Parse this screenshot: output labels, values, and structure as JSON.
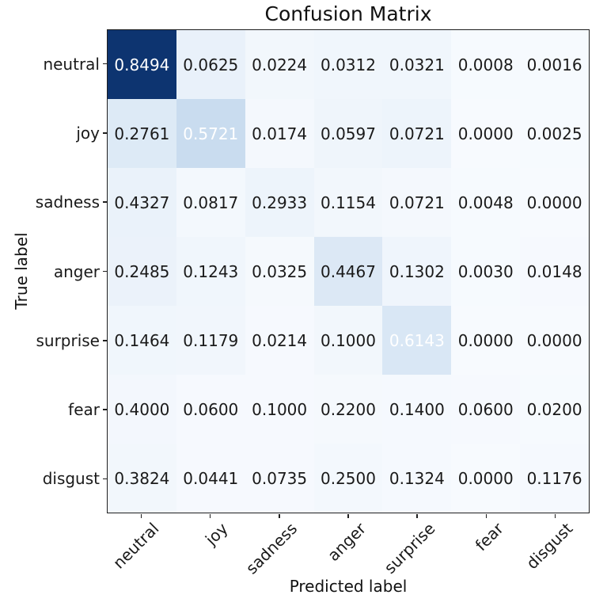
{
  "chart_data": {
    "type": "heatmap",
    "title": "Confusion Matrix",
    "xlabel": "Predicted label",
    "ylabel": "True label",
    "colormap": "Blues",
    "x_tick_labels": [
      "neutral",
      "joy",
      "sadness",
      "anger",
      "surprise",
      "fear",
      "disgust"
    ],
    "y_tick_labels": [
      "neutral",
      "joy",
      "sadness",
      "anger",
      "surprise",
      "fear",
      "disgust"
    ],
    "values": [
      [
        "0.8494",
        "0.0625",
        "0.0224",
        "0.0312",
        "0.0321",
        "0.0008",
        "0.0016"
      ],
      [
        "0.2761",
        "0.5721",
        "0.0174",
        "0.0597",
        "0.0721",
        "0.0000",
        "0.0025"
      ],
      [
        "0.4327",
        "0.0817",
        "0.2933",
        "0.1154",
        "0.0721",
        "0.0048",
        "0.0000"
      ],
      [
        "0.2485",
        "0.1243",
        "0.0325",
        "0.4467",
        "0.1302",
        "0.0030",
        "0.0148"
      ],
      [
        "0.1464",
        "0.1179",
        "0.0214",
        "0.1000",
        "0.6143",
        "0.0000",
        "0.0000"
      ],
      [
        "0.4000",
        "0.0600",
        "0.1000",
        "0.2200",
        "0.1400",
        "0.0600",
        "0.0200"
      ],
      [
        "0.3824",
        "0.0441",
        "0.0735",
        "0.2500",
        "0.1324",
        "0.0000",
        "0.1176"
      ]
    ],
    "cell_colors": [
      [
        "#0d3470",
        "#e9f1fa",
        "#f2f7fc",
        "#f0f6fc",
        "#f0f6fc",
        "#f6fafe",
        "#f6fafe"
      ],
      [
        "#ddeaf6",
        "#c9dcef",
        "#f4f8fd",
        "#eff5fb",
        "#edf4fb",
        "#f7fafe",
        "#f6fafe"
      ],
      [
        "#eaf2fa",
        "#f3f8fd",
        "#edf4fb",
        "#f2f7fc",
        "#f4f8fd",
        "#f6fafe",
        "#f7fafe"
      ],
      [
        "#ebf2fa",
        "#f0f6fc",
        "#f5f9fd",
        "#dce8f5",
        "#eff5fc",
        "#f6fafe",
        "#f6f9fe"
      ],
      [
        "#f0f6fc",
        "#f1f6fc",
        "#f6f9fe",
        "#f2f7fc",
        "#d9e7f5",
        "#f7fafe",
        "#f7fafe"
      ],
      [
        "#f3f7fd",
        "#f6f9fe",
        "#f6f9fe",
        "#f5f9fd",
        "#f5f9fe",
        "#f6f9fe",
        "#f6fafe"
      ],
      [
        "#f2f7fc",
        "#f6f9fe",
        "#f6f9fe",
        "#f3f8fd",
        "#f5f9fe",
        "#f7fafe",
        "#f5f9fe"
      ]
    ],
    "white_text_cells": [
      [
        0,
        0
      ],
      [
        1,
        1
      ],
      [
        4,
        4
      ]
    ],
    "colors": {
      "dark_text": "#1a1a1a",
      "light_text": "#ffffff",
      "spine": "#1f1f1f",
      "background": "#ffffff",
      "max_cell": "#0d3470"
    }
  }
}
